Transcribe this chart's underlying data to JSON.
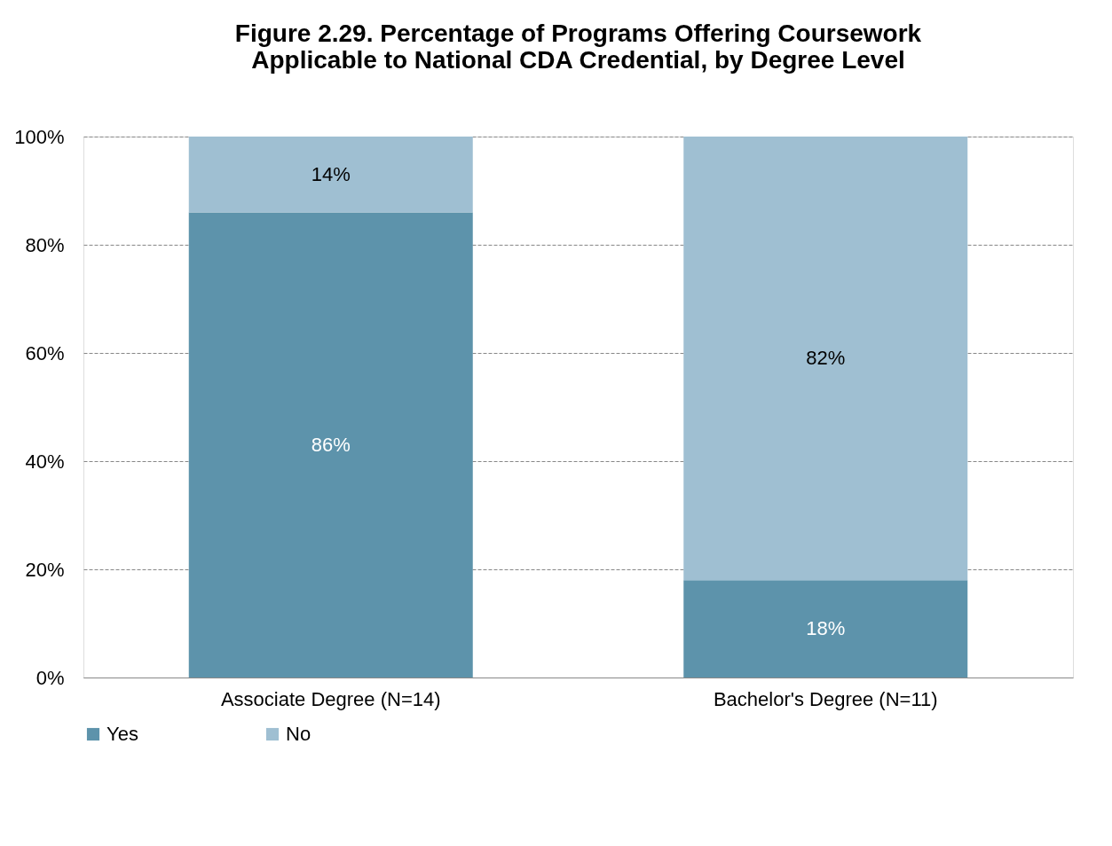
{
  "chart_data": {
    "type": "bar",
    "title": "Figure 2.29. Percentage of Programs Offering Coursework\nApplicable to National CDA Credential, by Degree Level",
    "categories": [
      "Associate Degree (N=14)",
      "Bachelor's Degree (N=11)"
    ],
    "series": [
      {
        "name": "Yes",
        "color": "#5d93ab",
        "values": [
          86,
          18
        ],
        "value_labels": [
          "86%",
          "18%"
        ]
      },
      {
        "name": "No",
        "color": "#9fbfd2",
        "values": [
          14,
          82
        ],
        "value_labels": [
          "14%",
          "82%"
        ]
      }
    ],
    "stacked": true,
    "ylim": [
      0,
      100
    ],
    "yticks": [
      {
        "value": 0,
        "label": "0%"
      },
      {
        "value": 20,
        "label": "20%"
      },
      {
        "value": 40,
        "label": "40%"
      },
      {
        "value": 60,
        "label": "60%"
      },
      {
        "value": 80,
        "label": "80%"
      },
      {
        "value": 100,
        "label": "100%"
      }
    ],
    "grid": "y",
    "legend": "bottom"
  }
}
